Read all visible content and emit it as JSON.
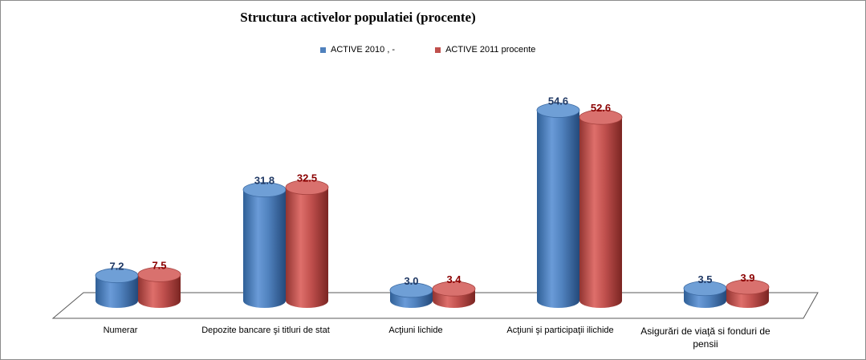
{
  "chart_data": {
    "type": "bar",
    "title": "Structura activelor populatiei (procente)",
    "categories": [
      "Numerar",
      "Depozite bancare şi titluri de stat",
      "Acţiuni lichide",
      "Acţiuni şi participaţii ilichide",
      "Asigurări de viaţă si fonduri de pensii"
    ],
    "series": [
      {
        "name": "ACTIVE 2010",
        "legend_text": "ACTIVE 2010 ,  -",
        "color": "#4f81bd",
        "label_color": "#1f3864",
        "values": [
          7.2,
          31.8,
          3.0,
          54.6,
          3.5
        ],
        "value_labels": [
          "7.2",
          "31.8",
          "3.0",
          "54.6",
          "3.5"
        ]
      },
      {
        "name": "ACTIVE 2011 procente",
        "legend_text": "ACTIVE 2011 procente",
        "color": "#c0504d",
        "label_color": "#8b0000",
        "values": [
          7.5,
          32.5,
          3.4,
          52.6,
          3.9
        ],
        "value_labels": [
          "7.5",
          "32.5",
          "3.4",
          "52.6",
          "3.9"
        ]
      }
    ],
    "ylim": [
      0,
      60
    ],
    "xlabel": "",
    "ylabel": "",
    "legend_position": "top",
    "grid": false
  }
}
